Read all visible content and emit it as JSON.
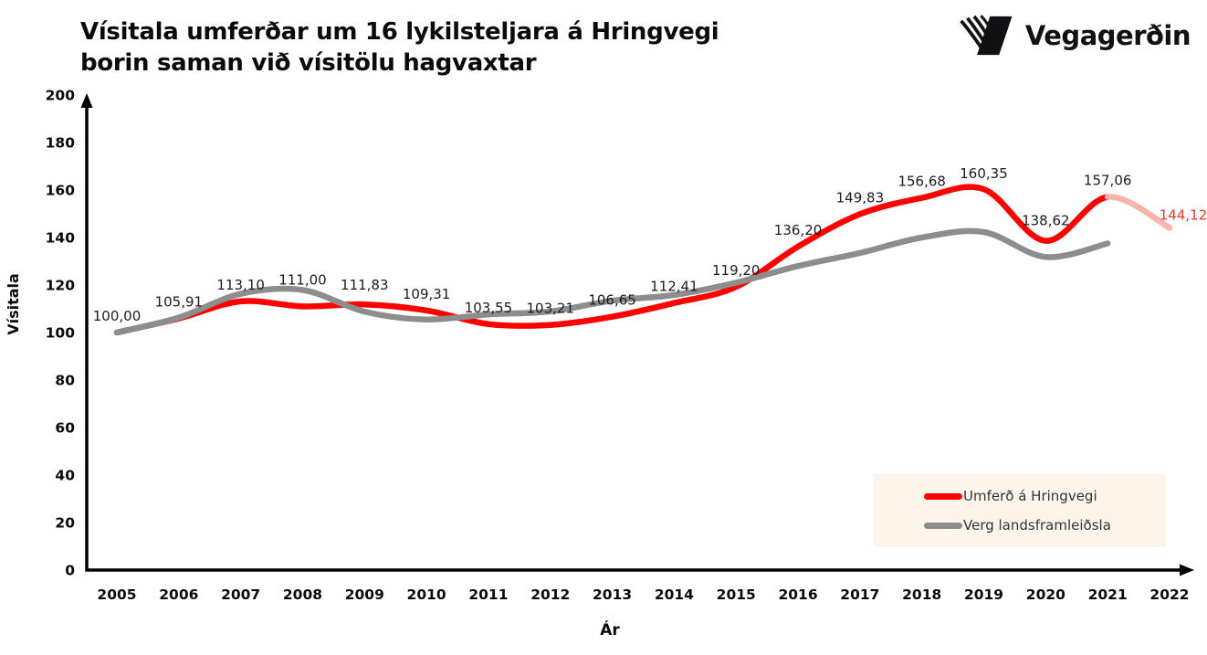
{
  "header": {
    "title_line1": "Vísitala umferðar um 16 lykilsteljara á Hringvegi",
    "title_line2": "borin saman við vísitölu hagvaxtar",
    "logo_text": "Vegagerðin"
  },
  "chart_data": {
    "type": "line",
    "title": "Vísitala umferðar um 16 lykilsteljara á Hringvegi borin saman við vísitölu hagvaxtar",
    "xlabel": "Ár",
    "ylabel": "Vísitala",
    "ylim": [
      0,
      200
    ],
    "yticks": [
      0,
      20,
      40,
      60,
      80,
      100,
      120,
      140,
      160,
      180,
      200
    ],
    "grid": false,
    "legend_position": "bottom-right",
    "categories": [
      2005,
      2006,
      2007,
      2008,
      2009,
      2010,
      2011,
      2012,
      2013,
      2014,
      2015,
      2016,
      2017,
      2018,
      2019,
      2020,
      2021,
      2022
    ],
    "series": [
      {
        "name": "Umferð á Hringvegi",
        "color": "#fe0000",
        "last_segment_color": "#f5b4ac",
        "last_label_color": "#e6392c",
        "values": [
          100.0,
          105.91,
          113.1,
          111.0,
          111.83,
          109.31,
          103.55,
          103.21,
          106.65,
          112.41,
          119.2,
          136.2,
          149.83,
          156.68,
          160.35,
          138.62,
          157.06,
          144.12
        ],
        "labels": [
          "100,00",
          "105,91",
          "113,10",
          "111,00",
          "111,83",
          "109,31",
          "103,55",
          "103,21",
          "106,65",
          "112,41",
          "119,20",
          "136,20",
          "149,83",
          "156,68",
          "160,35",
          "138,62",
          "157,06",
          "144,12"
        ]
      },
      {
        "name": "Verg landsframleiðsla",
        "color": "#8d8d8d",
        "values": [
          100.0,
          106.3,
          116.3,
          117.9,
          108.8,
          105.5,
          107.6,
          108.9,
          113.4,
          115.8,
          121.0,
          128.0,
          133.5,
          140.0,
          142.3,
          131.8,
          137.5
        ],
        "labels": null
      }
    ],
    "label_color": "#1b1b26",
    "axis_color": "#000000"
  },
  "legend": {
    "background": "#fdf5e9",
    "items": [
      {
        "label": "Umferð á Hringvegi",
        "color": "#fe0000"
      },
      {
        "label": "Verg landsframleiðsla",
        "color": "#8d8d8d"
      }
    ]
  }
}
